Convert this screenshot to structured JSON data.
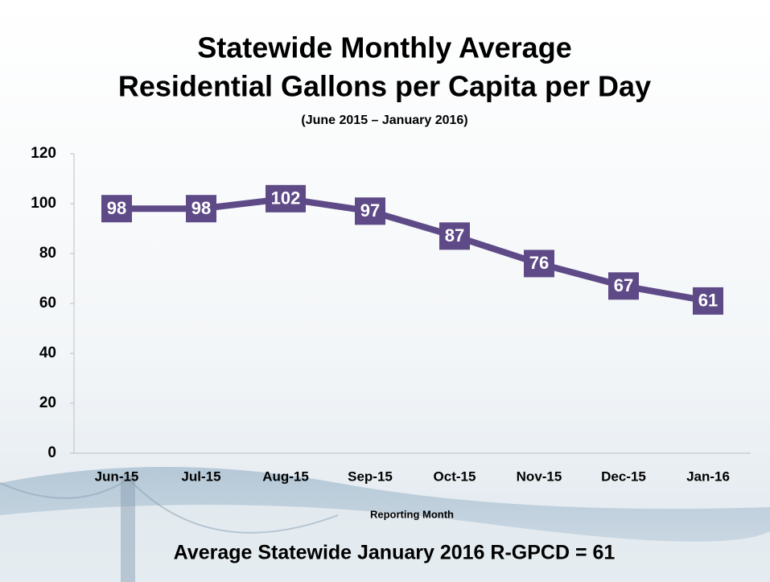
{
  "chart_data": {
    "type": "line",
    "title": [
      "Statewide Monthly Average",
      "Residential Gallons per Capita per Day"
    ],
    "subtitle": "(June 2015 – January 2016)",
    "x_label": "Reporting Month",
    "annotation": "Average Statewide January 2016 R-GPCD = 61",
    "categories": [
      "Jun-15",
      "Jul-15",
      "Aug-15",
      "Sep-15",
      "Oct-15",
      "Nov-15",
      "Dec-15",
      "Jan-16"
    ],
    "values": [
      98,
      98,
      102,
      97,
      87,
      76,
      67,
      61
    ],
    "color": "#5e4a87",
    "ylim": [
      0,
      120
    ],
    "yticks": [
      0,
      20,
      40,
      60,
      80,
      100,
      120
    ],
    "grid": false
  }
}
